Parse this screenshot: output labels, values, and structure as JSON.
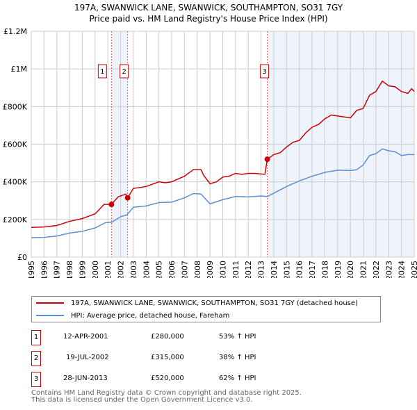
{
  "title": "197A, SWANWICK LANE, SWANWICK, SOUTHAMPTON, SO31 7GY",
  "subtitle": "Price paid vs. HM Land Registry's House Price Index (HPI)",
  "colors": {
    "property": "#cc0000",
    "hpi": "#5b8fd0",
    "shade": "#eef3fc"
  },
  "chart_data": {
    "type": "line",
    "title": "197A, SWANWICK LANE, SWANWICK, SOUTHAMPTON, SO31 7GY",
    "xlim": [
      1995,
      2025
    ],
    "ylim": [
      0,
      1200000
    ],
    "grid": true,
    "legend_placement": "bottom",
    "x_ticks": [
      "1995",
      "1996",
      "1997",
      "1998",
      "1999",
      "2000",
      "2001",
      "2002",
      "2003",
      "2004",
      "2005",
      "2006",
      "2007",
      "2008",
      "2009",
      "2010",
      "2011",
      "2012",
      "2013",
      "2014",
      "2015",
      "2016",
      "2017",
      "2018",
      "2019",
      "2020",
      "2021",
      "2022",
      "2023",
      "2024",
      "2025"
    ],
    "y_ticks": [
      {
        "v": 0,
        "label": "£0"
      },
      {
        "v": 200000,
        "label": "£200K"
      },
      {
        "v": 400000,
        "label": "£400K"
      },
      {
        "v": 600000,
        "label": "£600K"
      },
      {
        "v": 800000,
        "label": "£800K"
      },
      {
        "v": 1000000,
        "label": "£1M"
      },
      {
        "v": 1200000,
        "label": "£1.2M"
      }
    ],
    "series": [
      {
        "name": "197A, SWANWICK LANE, SWANWICK, SOUTHAMPTON, SO31 7GY (detached house)",
        "x": [
          1995,
          1996,
          1997,
          1998,
          1999,
          2000,
          2000.7,
          2001.28,
          2001.8,
          2002.4,
          2002.55,
          2003,
          2004,
          2005,
          2005.5,
          2006,
          2007,
          2007.7,
          2008.3,
          2008.5,
          2009,
          2009.5,
          2010,
          2010.5,
          2011,
          2011.5,
          2012,
          2012.5,
          2013.3,
          2013.49,
          2014,
          2014.5,
          2015,
          2015.5,
          2016,
          2016.5,
          2017,
          2017.5,
          2018,
          2018.5,
          2019,
          2019.5,
          2020,
          2020.5,
          2021,
          2021.5,
          2022,
          2022.5,
          2023,
          2023.5,
          2024,
          2024.5,
          2024.8,
          2025
        ],
        "y": [
          158000,
          160000,
          168000,
          190000,
          205000,
          230000,
          280000,
          280000,
          320000,
          335000,
          315000,
          365000,
          375000,
          400000,
          395000,
          400000,
          430000,
          465000,
          465000,
          435000,
          390000,
          400000,
          425000,
          430000,
          445000,
          440000,
          445000,
          445000,
          440000,
          520000,
          545000,
          555000,
          585000,
          610000,
          620000,
          660000,
          690000,
          705000,
          735000,
          755000,
          750000,
          745000,
          740000,
          780000,
          790000,
          860000,
          880000,
          935000,
          910000,
          905000,
          880000,
          870000,
          895000,
          880000
        ]
      },
      {
        "name": "HPI: Average price, detached house, Fareham",
        "x": [
          1995,
          1996,
          1997,
          1998,
          1999,
          2000,
          2000.8,
          2001.3,
          2002,
          2002.5,
          2003,
          2004,
          2005,
          2006,
          2007,
          2007.7,
          2008.3,
          2009,
          2010,
          2011,
          2012,
          2013,
          2013.5,
          2014,
          2015,
          2016,
          2017,
          2018,
          2019,
          2020,
          2020.5,
          2021,
          2021.5,
          2022,
          2022.5,
          2023,
          2023.5,
          2024,
          2024.5,
          2025
        ],
        "y": [
          103000,
          105000,
          112000,
          128000,
          137000,
          155000,
          183000,
          185000,
          215000,
          225000,
          265000,
          272000,
          290000,
          292000,
          315000,
          338000,
          335000,
          283000,
          305000,
          322000,
          320000,
          325000,
          322000,
          340000,
          375000,
          405000,
          430000,
          450000,
          462000,
          460000,
          465000,
          490000,
          540000,
          550000,
          575000,
          565000,
          560000,
          540000,
          545000,
          545000
        ]
      }
    ],
    "sales": [
      {
        "label": "1",
        "x": 2001.28,
        "y": 280000
      },
      {
        "label": "2",
        "x": 2002.55,
        "y": 315000
      },
      {
        "label": "3",
        "x": 2013.49,
        "y": 520000
      }
    ]
  },
  "legend": {
    "property": "197A, SWANWICK LANE, SWANWICK, SOUTHAMPTON, SO31 7GY (detached house)",
    "hpi": "HPI: Average price, detached house, Fareham"
  },
  "transactions": [
    {
      "num": "1",
      "date": "12-APR-2001",
      "price": "£280,000",
      "hpi": "53% ↑ HPI"
    },
    {
      "num": "2",
      "date": "19-JUL-2002",
      "price": "£315,000",
      "hpi": "38% ↑ HPI"
    },
    {
      "num": "3",
      "date": "28-JUN-2013",
      "price": "£520,000",
      "hpi": "62% ↑ HPI"
    }
  ],
  "footer": {
    "line1": "Contains HM Land Registry data © Crown copyright and database right 2025.",
    "line2": "This data is licensed under the Open Government Licence v3.0."
  }
}
